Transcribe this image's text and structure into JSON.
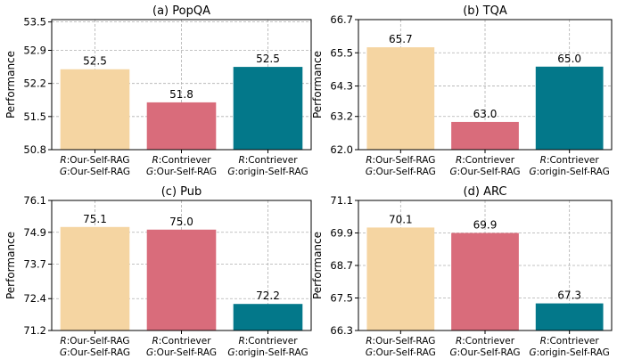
{
  "colors": {
    "bar_colors": [
      "#f5d5a2",
      "#d96c7b",
      "#03788a"
    ]
  },
  "chart_data": [
    {
      "type": "bar",
      "title": "(a) PopQA",
      "ylabel": "Performance",
      "categories": [
        {
          "r_prefix": "R",
          "r_text": ":Our-Self-RAG",
          "g_prefix": "G",
          "g_text": ":Our-Self-RAG"
        },
        {
          "r_prefix": "R",
          "r_text": ":Contriever",
          "g_prefix": "G",
          "g_text": ":Our-Self-RAG"
        },
        {
          "r_prefix": "R",
          "r_text": ":Contriever",
          "g_prefix": "G",
          "g_text": ":origin-Self-RAG"
        }
      ],
      "values": [
        52.5,
        51.8,
        52.5
      ],
      "value_labels": [
        "52.5",
        "51.8",
        "52.5"
      ],
      "bar_values_drawn": [
        52.5,
        51.8,
        52.55
      ],
      "ylim": [
        50.8,
        53.55
      ],
      "yticks": [
        50.8,
        51.5,
        52.2,
        52.9,
        53.5
      ],
      "ytick_labels": [
        "50.8",
        "51.5",
        "52.2",
        "52.9",
        "53.5"
      ],
      "grid": true
    },
    {
      "type": "bar",
      "title": "(b) TQA",
      "ylabel": "Performance",
      "categories": [
        {
          "r_prefix": "R",
          "r_text": ":Our-Self-RAG",
          "g_prefix": "G",
          "g_text": ":Our-Self-RAG"
        },
        {
          "r_prefix": "R",
          "r_text": ":Contriever",
          "g_prefix": "G",
          "g_text": ":Our-Self-RAG"
        },
        {
          "r_prefix": "R",
          "r_text": ":Contriever",
          "g_prefix": "G",
          "g_text": ":origin-Self-RAG"
        }
      ],
      "values": [
        65.7,
        63.0,
        65.0
      ],
      "value_labels": [
        "65.7",
        "63.0",
        "65.0"
      ],
      "bar_values_drawn": [
        65.7,
        63.0,
        65.0
      ],
      "ylim": [
        62.0,
        66.7
      ],
      "yticks": [
        62.0,
        63.2,
        64.3,
        65.5,
        66.7
      ],
      "ytick_labels": [
        "62.0",
        "63.2",
        "64.3",
        "65.5",
        "66.7"
      ],
      "grid": true
    },
    {
      "type": "bar",
      "title": "(c) Pub",
      "ylabel": "Performance",
      "categories": [
        {
          "r_prefix": "R",
          "r_text": ":Our-Self-RAG",
          "g_prefix": "G",
          "g_text": ":Our-Self-RAG"
        },
        {
          "r_prefix": "R",
          "r_text": ":Contriever",
          "g_prefix": "G",
          "g_text": ":Our-Self-RAG"
        },
        {
          "r_prefix": "R",
          "r_text": ":Contriever",
          "g_prefix": "G",
          "g_text": ":origin-Self-RAG"
        }
      ],
      "values": [
        75.1,
        75.0,
        72.2
      ],
      "value_labels": [
        "75.1",
        "75.0",
        "72.2"
      ],
      "bar_values_drawn": [
        75.1,
        75.0,
        72.2
      ],
      "ylim": [
        71.2,
        76.1
      ],
      "yticks": [
        71.2,
        72.4,
        73.7,
        74.9,
        76.1
      ],
      "ytick_labels": [
        "71.2",
        "72.4",
        "73.7",
        "74.9",
        "76.1"
      ],
      "grid": true
    },
    {
      "type": "bar",
      "title": "(d) ARC",
      "ylabel": "Performance",
      "categories": [
        {
          "r_prefix": "R",
          "r_text": ":Our-Self-RAG",
          "g_prefix": "G",
          "g_text": ":Our-Self-RAG"
        },
        {
          "r_prefix": "R",
          "r_text": ":Contriever",
          "g_prefix": "G",
          "g_text": ":Our-Self-RAG"
        },
        {
          "r_prefix": "R",
          "r_text": ":Contriever",
          "g_prefix": "G",
          "g_text": ":origin-Self-RAG"
        }
      ],
      "values": [
        70.1,
        69.9,
        67.3
      ],
      "value_labels": [
        "70.1",
        "69.9",
        "67.3"
      ],
      "bar_values_drawn": [
        70.1,
        69.9,
        67.3
      ],
      "ylim": [
        66.3,
        71.1
      ],
      "yticks": [
        66.3,
        67.5,
        68.7,
        69.9,
        71.1
      ],
      "ytick_labels": [
        "66.3",
        "67.5",
        "68.7",
        "69.9",
        "71.1"
      ],
      "grid": true
    }
  ]
}
